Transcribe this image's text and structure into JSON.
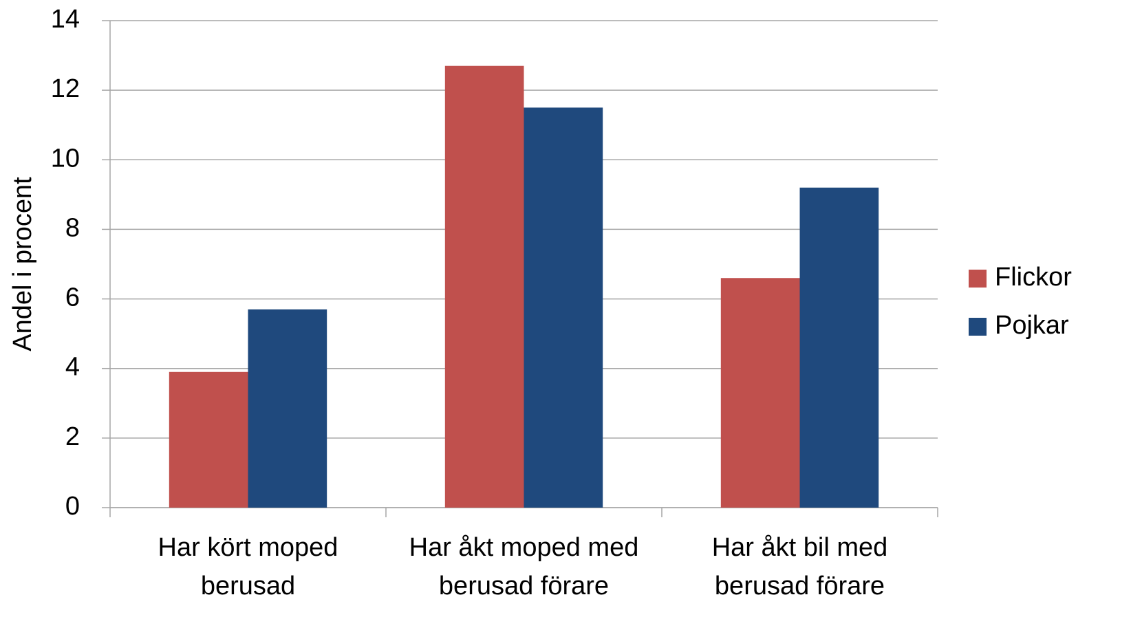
{
  "chart_data": {
    "type": "bar",
    "ylabel": "Andel i procent",
    "categories": [
      "Har kört moped berusad",
      "Har åkt moped med berusad förare",
      "Har åkt bil med berusad förare"
    ],
    "series": [
      {
        "name": "Flickor",
        "color": "#c0504d",
        "values": [
          3.9,
          12.7,
          6.6
        ]
      },
      {
        "name": "Pojkar",
        "color": "#1f497d",
        "values": [
          5.7,
          11.5,
          9.2
        ]
      }
    ],
    "ylim": [
      0,
      14
    ],
    "yticks": [
      0,
      2,
      4,
      6,
      8,
      10,
      12,
      14
    ],
    "grid": true,
    "legend": "right"
  }
}
